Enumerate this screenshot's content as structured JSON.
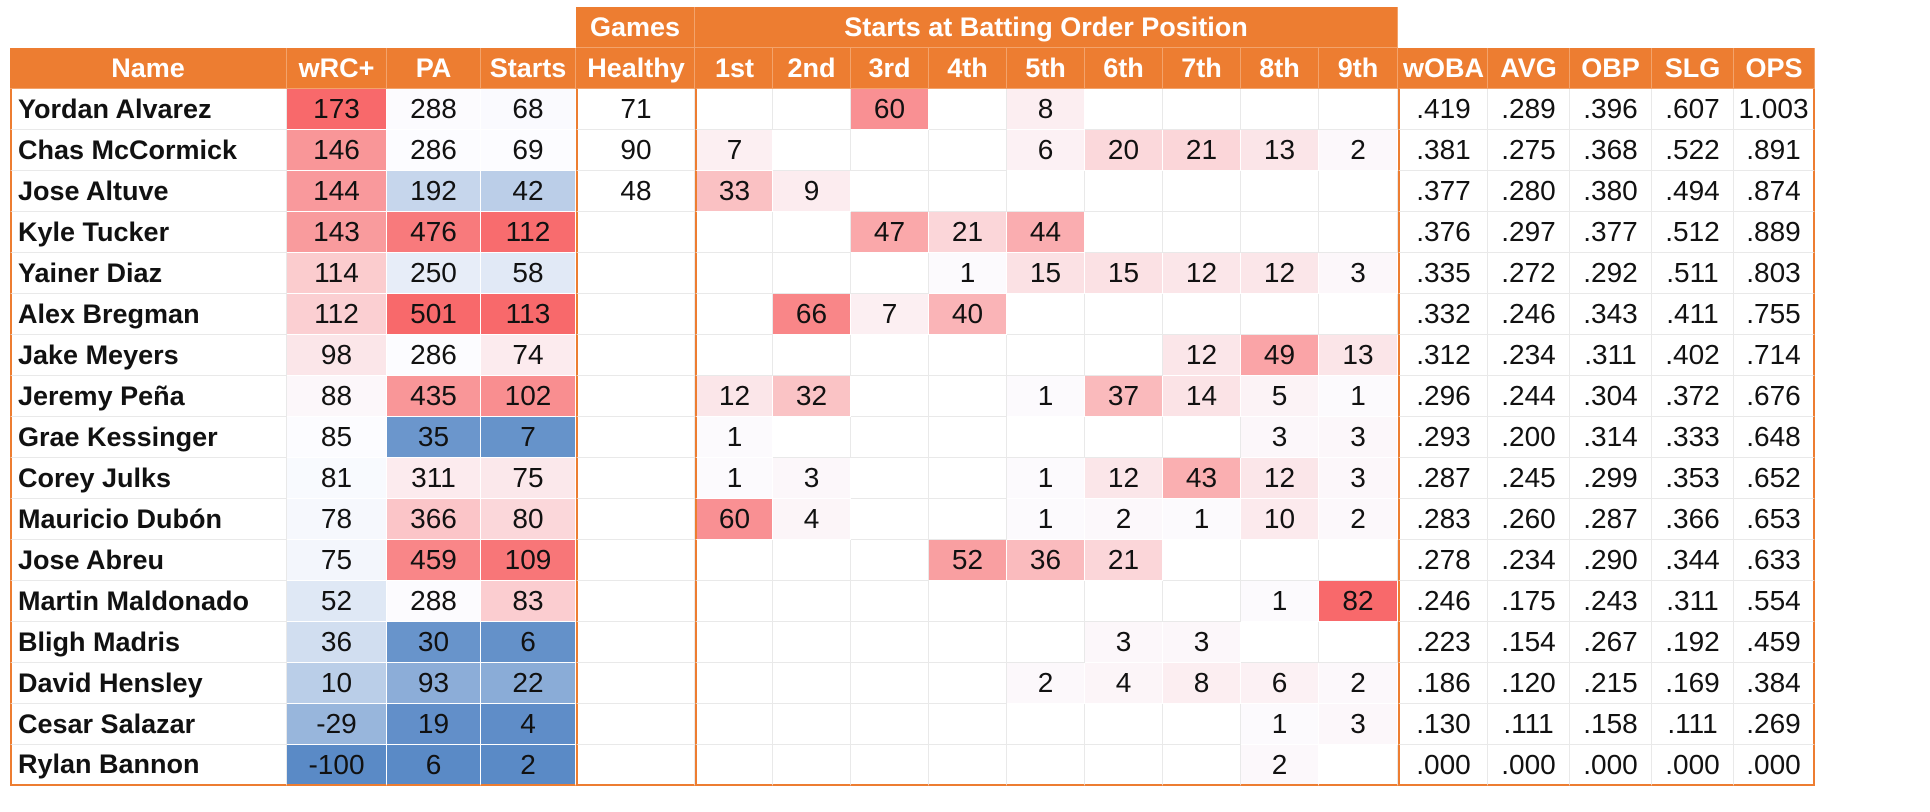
{
  "header": {
    "group_games": "Games",
    "group_starts": "Starts at Batting Order Position",
    "columns": [
      "Name",
      "wRC+",
      "PA",
      "Starts",
      "Healthy",
      "1st",
      "2nd",
      "3rd",
      "4th",
      "5th",
      "6th",
      "7th",
      "8th",
      "9th",
      "wOBA",
      "AVG",
      "OBP",
      "SLG",
      "OPS"
    ]
  },
  "colors": {
    "header_orange": "#ED7D31",
    "scale_high": "#F8696B",
    "scale_mid": "#FCFCFF",
    "scale_low": "#5A8AC6"
  },
  "rows": [
    {
      "name": "Yordan Alvarez",
      "wrc": "173",
      "pa": "288",
      "starts": "68",
      "healthy": "71",
      "pos": [
        "",
        "",
        "60",
        "",
        "8",
        "",
        "",
        "",
        ""
      ],
      "woba": ".419",
      "avg": ".289",
      "obp": ".396",
      "slg": ".607",
      "ops": "1.003"
    },
    {
      "name": "Chas McCormick",
      "wrc": "146",
      "pa": "286",
      "starts": "69",
      "healthy": "90",
      "pos": [
        "7",
        "",
        "",
        "",
        "6",
        "20",
        "21",
        "13",
        "2"
      ],
      "woba": ".381",
      "avg": ".275",
      "obp": ".368",
      "slg": ".522",
      "ops": ".891"
    },
    {
      "name": "Jose Altuve",
      "wrc": "144",
      "pa": "192",
      "starts": "42",
      "healthy": "48",
      "pos": [
        "33",
        "9",
        "",
        "",
        "",
        "",
        "",
        "",
        ""
      ],
      "woba": ".377",
      "avg": ".280",
      "obp": ".380",
      "slg": ".494",
      "ops": ".874"
    },
    {
      "name": "Kyle Tucker",
      "wrc": "143",
      "pa": "476",
      "starts": "112",
      "healthy": "",
      "pos": [
        "",
        "",
        "47",
        "21",
        "44",
        "",
        "",
        "",
        ""
      ],
      "woba": ".376",
      "avg": ".297",
      "obp": ".377",
      "slg": ".512",
      "ops": ".889"
    },
    {
      "name": "Yainer Diaz",
      "wrc": "114",
      "pa": "250",
      "starts": "58",
      "healthy": "",
      "pos": [
        "",
        "",
        "",
        "1",
        "15",
        "15",
        "12",
        "12",
        "3"
      ],
      "woba": ".335",
      "avg": ".272",
      "obp": ".292",
      "slg": ".511",
      "ops": ".803"
    },
    {
      "name": "Alex Bregman",
      "wrc": "112",
      "pa": "501",
      "starts": "113",
      "healthy": "",
      "pos": [
        "",
        "66",
        "7",
        "40",
        "",
        "",
        "",
        "",
        ""
      ],
      "woba": ".332",
      "avg": ".246",
      "obp": ".343",
      "slg": ".411",
      "ops": ".755"
    },
    {
      "name": "Jake Meyers",
      "wrc": "98",
      "pa": "286",
      "starts": "74",
      "healthy": "",
      "pos": [
        "",
        "",
        "",
        "",
        "",
        "",
        "12",
        "49",
        "13"
      ],
      "woba": ".312",
      "avg": ".234",
      "obp": ".311",
      "slg": ".402",
      "ops": ".714"
    },
    {
      "name": "Jeremy Peña",
      "wrc": "88",
      "pa": "435",
      "starts": "102",
      "healthy": "",
      "pos": [
        "12",
        "32",
        "",
        "",
        "1",
        "37",
        "14",
        "5",
        "1"
      ],
      "woba": ".296",
      "avg": ".244",
      "obp": ".304",
      "slg": ".372",
      "ops": ".676"
    },
    {
      "name": "Grae Kessinger",
      "wrc": "85",
      "pa": "35",
      "starts": "7",
      "healthy": "",
      "pos": [
        "1",
        "",
        "",
        "",
        "",
        "",
        "",
        "3",
        "3"
      ],
      "woba": ".293",
      "avg": ".200",
      "obp": ".314",
      "slg": ".333",
      "ops": ".648"
    },
    {
      "name": "Corey Julks",
      "wrc": "81",
      "pa": "311",
      "starts": "75",
      "healthy": "",
      "pos": [
        "1",
        "3",
        "",
        "",
        "1",
        "12",
        "43",
        "12",
        "3"
      ],
      "woba": ".287",
      "avg": ".245",
      "obp": ".299",
      "slg": ".353",
      "ops": ".652"
    },
    {
      "name": "Mauricio Dubón",
      "wrc": "78",
      "pa": "366",
      "starts": "80",
      "healthy": "",
      "pos": [
        "60",
        "4",
        "",
        "",
        "1",
        "2",
        "1",
        "10",
        "2"
      ],
      "woba": ".283",
      "avg": ".260",
      "obp": ".287",
      "slg": ".366",
      "ops": ".653"
    },
    {
      "name": "Jose Abreu",
      "wrc": "75",
      "pa": "459",
      "starts": "109",
      "healthy": "",
      "pos": [
        "",
        "",
        "",
        "52",
        "36",
        "21",
        "",
        "",
        ""
      ],
      "woba": ".278",
      "avg": ".234",
      "obp": ".290",
      "slg": ".344",
      "ops": ".633"
    },
    {
      "name": "Martin Maldonado",
      "wrc": "52",
      "pa": "288",
      "starts": "83",
      "healthy": "",
      "pos": [
        "",
        "",
        "",
        "",
        "",
        "",
        "",
        "1",
        "82"
      ],
      "woba": ".246",
      "avg": ".175",
      "obp": ".243",
      "slg": ".311",
      "ops": ".554"
    },
    {
      "name": "Bligh Madris",
      "wrc": "36",
      "pa": "30",
      "starts": "6",
      "healthy": "",
      "pos": [
        "",
        "",
        "",
        "",
        "",
        "3",
        "3",
        "",
        ""
      ],
      "woba": ".223",
      "avg": ".154",
      "obp": ".267",
      "slg": ".192",
      "ops": ".459"
    },
    {
      "name": "David Hensley",
      "wrc": "10",
      "pa": "93",
      "starts": "22",
      "healthy": "",
      "pos": [
        "",
        "",
        "",
        "",
        "2",
        "4",
        "8",
        "6",
        "2"
      ],
      "woba": ".186",
      "avg": ".120",
      "obp": ".215",
      "slg": ".169",
      "ops": ".384"
    },
    {
      "name": "Cesar Salazar",
      "wrc": "-29",
      "pa": "19",
      "starts": "4",
      "healthy": "",
      "pos": [
        "",
        "",
        "",
        "",
        "",
        "",
        "",
        "1",
        "3"
      ],
      "woba": ".130",
      "avg": ".111",
      "obp": ".158",
      "slg": ".111",
      "ops": ".269"
    },
    {
      "name": "Rylan Bannon",
      "wrc": "-100",
      "pa": "6",
      "starts": "2",
      "healthy": "",
      "pos": [
        "",
        "",
        "",
        "",
        "",
        "",
        "",
        "2",
        ""
      ],
      "woba": ".000",
      "avg": ".000",
      "obp": ".000",
      "slg": ".000",
      "ops": ".000"
    }
  ]
}
